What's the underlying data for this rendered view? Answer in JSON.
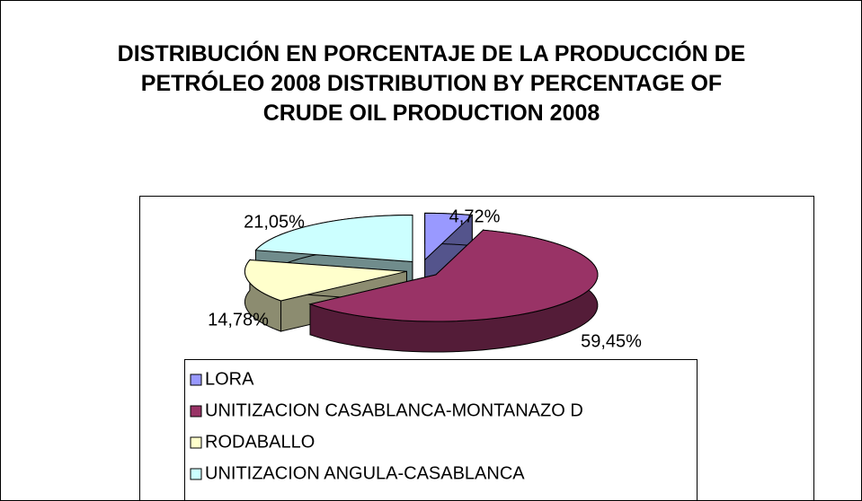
{
  "chart_data": {
    "type": "pie3d",
    "title": "DISTRIBUCIÓN EN PORCENTAJE DE LA PRODUCCIÓN DE PETRÓLEO 2008 DISTRIBUTION BY PERCENTAGE OF CRUDE OIL PRODUCTION 2008",
    "categories": [
      "LORA",
      "UNITIZACION CASABLANCA-MONTANAZO D",
      "RODABALLO",
      "UNITIZACION ANGULA-CASABLANCA"
    ],
    "values": [
      4.72,
      59.45,
      14.78,
      21.05
    ],
    "value_labels": [
      "4,72%",
      "59,45%",
      "14,78%",
      "21,05%"
    ],
    "colors": [
      "#9999ff",
      "#993366",
      "#ffffcc",
      "#ccffff"
    ],
    "legend": "bottom"
  }
}
